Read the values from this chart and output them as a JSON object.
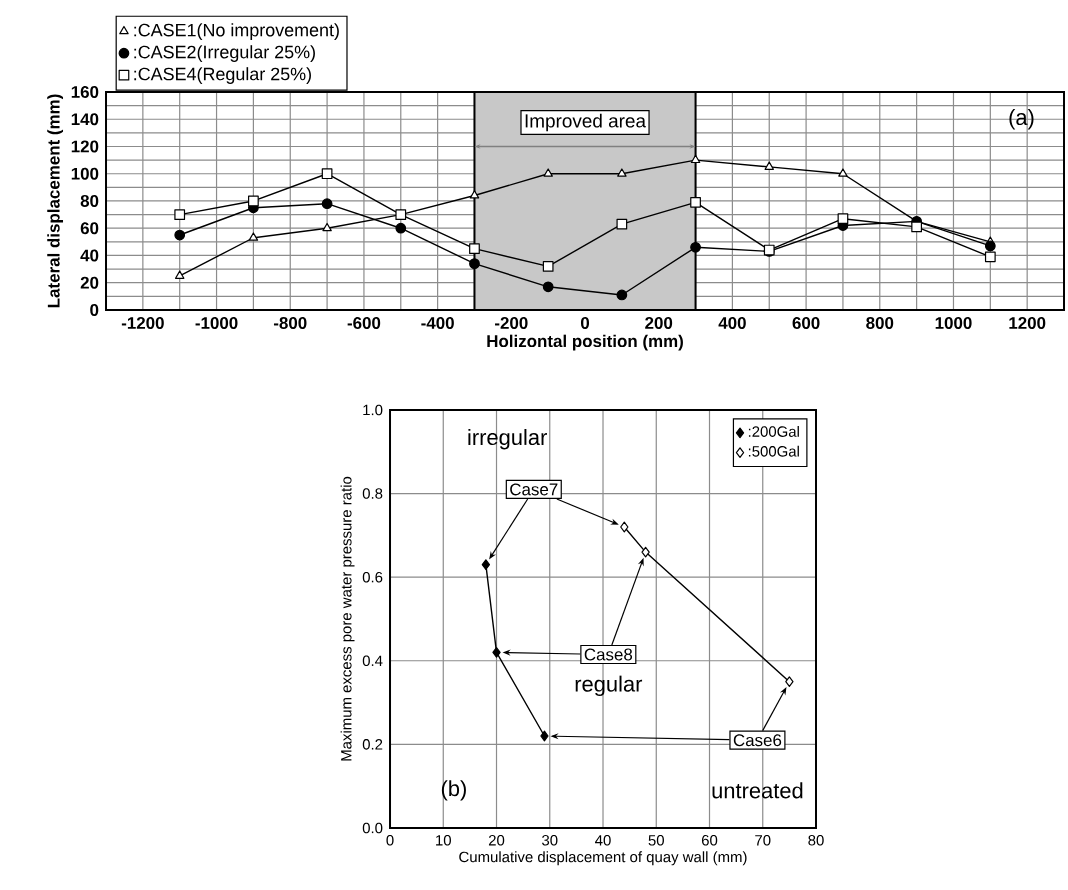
{
  "chart_data": [
    {
      "type": "line",
      "xlabel": "Holizontal position (mm)",
      "ylabel": "Lateral displacement (mm)",
      "x": [
        -1100,
        -900,
        -700,
        -500,
        -300,
        -100,
        100,
        300,
        500,
        700,
        900,
        1100
      ],
      "series": [
        {
          "name": ":CASE1(No improvement)",
          "color": "#ffffff",
          "marker": "triangle",
          "values": [
            25,
            53,
            60,
            70,
            84,
            100,
            100,
            110,
            105,
            100,
            65,
            50
          ]
        },
        {
          "name": ":CASE2(Irregular 25%)",
          "color": "#000000",
          "marker": "circle",
          "values": [
            55,
            75,
            78,
            60,
            34,
            17,
            11,
            46,
            43,
            62,
            65,
            47
          ]
        },
        {
          "name": ":CASE4(Regular 25%)",
          "color": "#ffffff",
          "marker": "square",
          "values": [
            70,
            80,
            100,
            70,
            45,
            32,
            63,
            79,
            44,
            67,
            61,
            39
          ]
        }
      ],
      "xlim": [
        -1300,
        1300
      ],
      "xticks": [
        -1200,
        -1000,
        -800,
        -600,
        -400,
        -200,
        0,
        200,
        400,
        600,
        800,
        1000,
        1200
      ],
      "ylim": [
        0,
        160
      ],
      "yticks": [
        0,
        20,
        40,
        60,
        80,
        100,
        120,
        140,
        160
      ],
      "bands": [
        {
          "axis": "x",
          "from": -300,
          "to": 300,
          "label": "Improved area",
          "color": "#c8c8c8"
        }
      ],
      "annotations": [
        "(a)"
      ],
      "grid": true,
      "legend": "top left"
    },
    {
      "type": "line",
      "xlabel": "Cumulative displacement of quay wall (mm)",
      "ylabel": "Maximum excess pore water pressure ratio",
      "series": [
        {
          "name": ":200Gal",
          "color": "#000000",
          "marker": "diamond",
          "x": [
            18,
            20,
            29
          ],
          "values": [
            0.63,
            0.42,
            0.22
          ]
        },
        {
          "name": ":500Gal",
          "color": "#ffffff",
          "marker": "diamond",
          "x": [
            44,
            48,
            75
          ],
          "values": [
            0.72,
            0.66,
            0.35
          ]
        }
      ],
      "xlim": [
        0,
        80
      ],
      "xticks": [
        0,
        10,
        20,
        30,
        40,
        50,
        60,
        70,
        80
      ],
      "ylim": [
        0,
        1
      ],
      "yticks": [
        {
          "value": 0,
          "label": "0.0"
        },
        {
          "value": 0.2,
          "label": "0.2"
        },
        {
          "value": 0.4,
          "label": "0.4"
        },
        {
          "value": 0.6,
          "label": "0.6"
        },
        {
          "value": 0.8,
          "label": "0.8"
        },
        {
          "value": 1,
          "label": "1.0"
        }
      ],
      "annotations": [
        "irregular",
        {
          "text": "Case7",
          "x": 18,
          "y": 0.63
        },
        {
          "text": "Case8",
          "x": 48,
          "y": 0.66
        },
        "regular",
        {
          "text": "Case6",
          "x": 29,
          "y": 0.22
        },
        "untreated",
        "(b)"
      ],
      "grid": true,
      "legend": "top right"
    }
  ]
}
